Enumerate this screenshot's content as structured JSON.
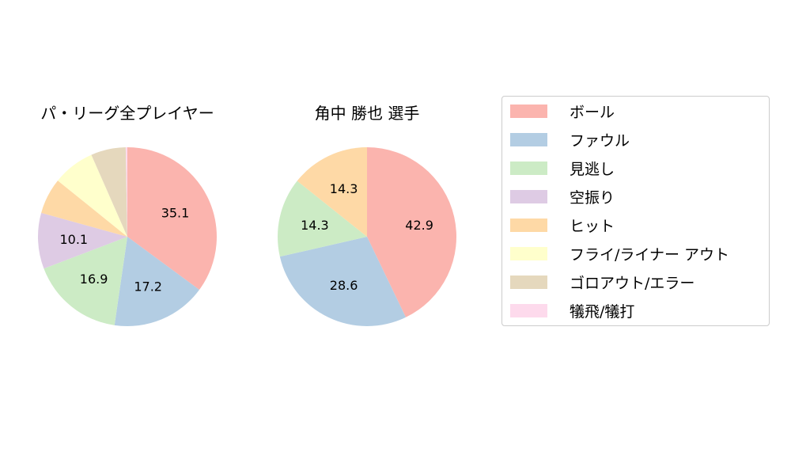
{
  "chart_data": [
    {
      "type": "pie",
      "title": "パ・リーグ全プレイヤー",
      "categories": [
        "ボール",
        "ファウル",
        "見逃し",
        "空振り",
        "ヒット",
        "フライ/ライナー アウト",
        "ゴロアウト/エラー",
        "犠飛/犠打"
      ],
      "values": [
        35.1,
        17.2,
        16.9,
        10.1,
        6.5,
        7.6,
        6.3,
        0.3
      ],
      "labels_shown": [
        "35.1",
        "17.2",
        "16.9",
        "10.1",
        "",
        "",
        "",
        ""
      ],
      "colors": [
        "#fbb4ae",
        "#b3cde3",
        "#ccebc5",
        "#decbe4",
        "#fed9a6",
        "#ffffcc",
        "#e5d8bd",
        "#fddaec"
      ],
      "start_angle": 90,
      "direction": "clockwise"
    },
    {
      "type": "pie",
      "title": "角中 勝也  選手",
      "categories": [
        "ボール",
        "ファウル",
        "見逃し",
        "ヒット"
      ],
      "values": [
        42.9,
        28.6,
        14.3,
        14.3
      ],
      "labels_shown": [
        "42.9",
        "28.6",
        "14.3",
        "14.3"
      ],
      "colors": [
        "#fbb4ae",
        "#b3cde3",
        "#ccebc5",
        "#fed9a6"
      ],
      "start_angle": 90,
      "direction": "clockwise"
    }
  ],
  "titles": {
    "left": "パ・リーグ全プレイヤー",
    "right": "角中 勝也  選手"
  },
  "legend": {
    "items": [
      {
        "label": "ボール",
        "color": "#fbb4ae"
      },
      {
        "label": "ファウル",
        "color": "#b3cde3"
      },
      {
        "label": "見逃し",
        "color": "#ccebc5"
      },
      {
        "label": "空振り",
        "color": "#decbe4"
      },
      {
        "label": "ヒット",
        "color": "#fed9a6"
      },
      {
        "label": "フライ/ライナー アウト",
        "color": "#ffffcc"
      },
      {
        "label": "ゴロアウト/エラー",
        "color": "#e5d8bd"
      },
      {
        "label": "犠飛/犠打",
        "color": "#fddaec"
      }
    ]
  }
}
